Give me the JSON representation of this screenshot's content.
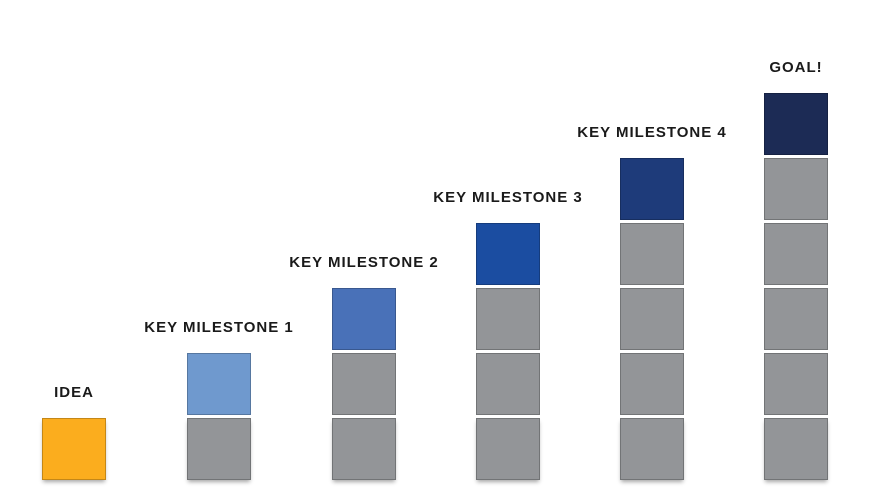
{
  "chart_data": {
    "type": "bar",
    "subtype": "stacked-unit-blocks-progress",
    "title": "",
    "categories": [
      "IDEA",
      "KEY MILESTONE 1",
      "KEY MILESTONE 2",
      "KEY MILESTONE 3",
      "KEY MILESTONE 4",
      "GOAL!"
    ],
    "values": [
      1,
      2,
      3,
      4,
      5,
      6
    ],
    "ylim": [
      0,
      6
    ],
    "xlabel": "",
    "ylabel": "",
    "grid": false,
    "legend": false,
    "bars": [
      {
        "label": "IDEA",
        "total_blocks": 1,
        "highlight_blocks": 1,
        "highlight_color": "#FBAD1E"
      },
      {
        "label": "KEY MILESTONE 1",
        "total_blocks": 2,
        "highlight_blocks": 1,
        "highlight_color": "#6F99CE"
      },
      {
        "label": "KEY MILESTONE 2",
        "total_blocks": 3,
        "highlight_blocks": 1,
        "highlight_color": "#4971B8"
      },
      {
        "label": "KEY MILESTONE 3",
        "total_blocks": 4,
        "highlight_blocks": 1,
        "highlight_color": "#1B4DA1"
      },
      {
        "label": "KEY MILESTONE 4",
        "total_blocks": 5,
        "highlight_blocks": 1,
        "highlight_color": "#1E3B7A"
      },
      {
        "label": "GOAL!",
        "total_blocks": 6,
        "highlight_blocks": 1,
        "highlight_color": "#1C2B55"
      }
    ],
    "base_block_color": "#939598",
    "label_color": "#1A1A1A",
    "background_color": "#FFFFFF"
  }
}
